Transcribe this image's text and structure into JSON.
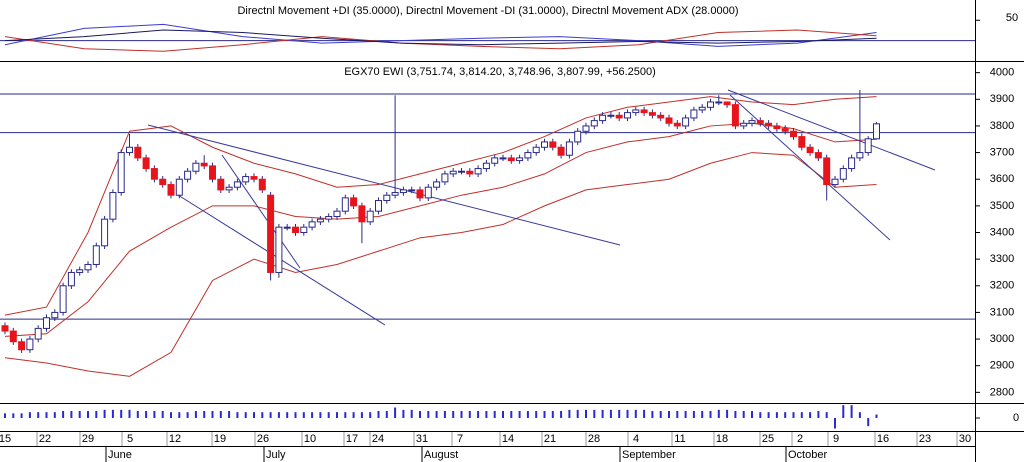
{
  "chart_data": {
    "type": "candlestick",
    "title": "EGX70 EWI (3,751.74, 3,814.20, 3,748.96, 3,807.99, +56.2500)",
    "up_color": "#ffffff",
    "down_color": "#e8141b",
    "edge_color": "#2a2a8a",
    "open": [
      3050,
      3030,
      2990,
      2960,
      3000,
      3040,
      3080,
      3100,
      3200,
      3250,
      3260,
      3280,
      3350,
      3450,
      3550,
      3700,
      3720,
      3680,
      3640,
      3600,
      3580,
      3540,
      3600,
      3630,
      3660,
      3650,
      3600,
      3560,
      3570,
      3590,
      3610,
      3600,
      3540,
      3250,
      3420,
      3420,
      3400,
      3420,
      3440,
      3450,
      3460,
      3480,
      3530,
      3500,
      3440,
      3480,
      3520,
      3540,
      3550,
      3560,
      3560,
      3530,
      3570,
      3590,
      3620,
      3630,
      3630,
      3620,
      3640,
      3660,
      3680,
      3680,
      3670,
      3680,
      3700,
      3720,
      3740,
      3720,
      3690,
      3740,
      3780,
      3800,
      3820,
      3840,
      3840,
      3830,
      3850,
      3860,
      3850,
      3840,
      3830,
      3810,
      3800,
      3830,
      3860,
      3870,
      3890,
      3890,
      3880,
      3800,
      3810,
      3820,
      3810,
      3800,
      3790,
      3780,
      3760,
      3720,
      3700,
      3680,
      3580,
      3600,
      3640,
      3680,
      3700,
      3751.74
    ],
    "high": [
      3062,
      3042,
      3002,
      3012,
      3052,
      3092,
      3112,
      3212,
      3262,
      3272,
      3292,
      3362,
      3462,
      3562,
      3712,
      3770,
      3732,
      3692,
      3652,
      3612,
      3592,
      3612,
      3642,
      3672,
      3690,
      3662,
      3612,
      3582,
      3602,
      3622,
      3622,
      3612,
      3552,
      3432,
      3432,
      3432,
      3432,
      3452,
      3462,
      3472,
      3492,
      3542,
      3542,
      3512,
      3492,
      3532,
      3552,
      3915,
      3572,
      3572,
      3572,
      3582,
      3602,
      3632,
      3642,
      3642,
      3642,
      3652,
      3672,
      3692,
      3692,
      3692,
      3692,
      3712,
      3732,
      3752,
      3752,
      3732,
      3752,
      3792,
      3812,
      3832,
      3852,
      3852,
      3852,
      3862,
      3872,
      3872,
      3862,
      3852,
      3842,
      3822,
      3842,
      3872,
      3882,
      3902,
      3915,
      3892,
      3892,
      3822,
      3832,
      3832,
      3822,
      3812,
      3802,
      3792,
      3772,
      3732,
      3712,
      3692,
      3612,
      3652,
      3692,
      3935,
      3762,
      3814.2
    ],
    "low": [
      3018,
      2978,
      2948,
      2948,
      2988,
      3028,
      3068,
      3088,
      3188,
      3238,
      3248,
      3268,
      3338,
      3438,
      3538,
      3688,
      3668,
      3628,
      3588,
      3568,
      3528,
      3528,
      3588,
      3618,
      3638,
      3588,
      3548,
      3548,
      3558,
      3578,
      3588,
      3548,
      3220,
      3230,
      3408,
      3388,
      3388,
      3408,
      3428,
      3438,
      3448,
      3468,
      3488,
      3360,
      3428,
      3468,
      3508,
      3528,
      3538,
      3548,
      3518,
      3518,
      3558,
      3578,
      3608,
      3618,
      3608,
      3608,
      3628,
      3648,
      3668,
      3658,
      3658,
      3668,
      3688,
      3708,
      3708,
      3678,
      3678,
      3728,
      3768,
      3788,
      3808,
      3828,
      3818,
      3818,
      3838,
      3838,
      3828,
      3818,
      3798,
      3788,
      3788,
      3818,
      3848,
      3858,
      3878,
      3868,
      3788,
      3788,
      3798,
      3798,
      3788,
      3778,
      3768,
      3748,
      3708,
      3688,
      3668,
      3520,
      3568,
      3588,
      3628,
      3668,
      3688,
      3748.96
    ],
    "close": [
      3030,
      2990,
      2960,
      3000,
      3040,
      3080,
      3100,
      3200,
      3250,
      3260,
      3280,
      3350,
      3450,
      3550,
      3700,
      3720,
      3680,
      3640,
      3600,
      3580,
      3540,
      3600,
      3630,
      3660,
      3650,
      3600,
      3560,
      3570,
      3590,
      3610,
      3600,
      3560,
      3250,
      3420,
      3420,
      3400,
      3420,
      3440,
      3450,
      3460,
      3480,
      3530,
      3500,
      3440,
      3480,
      3520,
      3540,
      3550,
      3560,
      3560,
      3530,
      3570,
      3590,
      3620,
      3630,
      3630,
      3620,
      3640,
      3660,
      3680,
      3680,
      3670,
      3680,
      3700,
      3720,
      3740,
      3720,
      3690,
      3740,
      3780,
      3800,
      3820,
      3840,
      3840,
      3830,
      3850,
      3860,
      3850,
      3840,
      3830,
      3810,
      3800,
      3830,
      3860,
      3870,
      3890,
      3890,
      3880,
      3800,
      3810,
      3820,
      3810,
      3800,
      3790,
      3780,
      3760,
      3720,
      3700,
      3680,
      3580,
      3600,
      3640,
      3680,
      3700,
      3751.74,
      3807.99
    ],
    "ylim": [
      2760,
      4040
    ],
    "yticks": [
      2800,
      2900,
      3000,
      3100,
      3200,
      3300,
      3400,
      3500,
      3600,
      3700,
      3800,
      3900,
      4000
    ],
    "levels": [
      3920,
      3775,
      3075
    ],
    "level_color": "#2a2a8a",
    "bands": {
      "color": "#c0302a",
      "upper": [
        3090,
        3120,
        3400,
        3780,
        3800,
        3720,
        3660,
        3620,
        3570,
        3580,
        3620,
        3660,
        3700,
        3760,
        3830,
        3870,
        3890,
        3910,
        3890,
        3880,
        3900,
        3910
      ],
      "middle": [
        3010,
        3020,
        3140,
        3330,
        3420,
        3500,
        3500,
        3460,
        3450,
        3460,
        3500,
        3540,
        3570,
        3620,
        3700,
        3740,
        3760,
        3800,
        3810,
        3790,
        3740,
        3750
      ],
      "lower": [
        2930,
        2910,
        2880,
        2860,
        2950,
        3220,
        3300,
        3250,
        3280,
        3330,
        3380,
        3400,
        3430,
        3500,
        3560,
        3580,
        3600,
        3660,
        3700,
        3690,
        3570,
        3580
      ]
    },
    "x_labels": [
      "15",
      "22",
      "29",
      "5",
      "12",
      "19",
      "26",
      "10",
      "17",
      "24",
      "31",
      "7",
      "14",
      "21",
      "28",
      "4",
      "11",
      "18",
      "25",
      "2",
      "9",
      "16",
      "23",
      "30"
    ],
    "months": [
      "June",
      "July",
      "August",
      "September",
      "October"
    ],
    "dmi": {
      "title": "Directnl Movement +DI (35.0000), Directnl Movement -DI (31.0000), Directnl Movement ADX (28.0000)",
      "ylim": [
        0,
        70
      ],
      "yticks": [
        50
      ],
      "level": 25,
      "series": [
        {
          "color": "#3b3bd0",
          "values": [
            20,
            40,
            45,
            30,
            22,
            25,
            28,
            30,
            25,
            18,
            22,
            35
          ]
        },
        {
          "color": "#c0302a",
          "values": [
            30,
            15,
            12,
            20,
            30,
            22,
            18,
            15,
            20,
            35,
            38,
            31
          ]
        },
        {
          "color": "#1a1a60",
          "values": [
            25,
            30,
            38,
            35,
            28,
            22,
            20,
            22,
            24,
            22,
            24,
            28
          ]
        }
      ]
    },
    "momentum": {
      "color": "#2a2ad0",
      "ylim": [
        -12,
        12
      ],
      "yticks": [
        0
      ],
      "values": [
        4,
        4,
        4,
        5,
        5,
        5,
        5,
        6,
        6,
        6,
        6,
        6,
        7,
        7,
        7,
        7,
        6,
        6,
        6,
        6,
        5,
        5,
        5,
        6,
        6,
        6,
        6,
        6,
        5,
        5,
        5,
        5,
        5,
        5,
        5,
        5,
        5,
        5,
        5,
        5,
        5,
        5,
        5,
        5,
        5,
        6,
        6,
        9,
        7,
        7,
        6,
        6,
        6,
        6,
        6,
        6,
        6,
        6,
        6,
        6,
        6,
        6,
        6,
        6,
        6,
        6,
        6,
        6,
        7,
        7,
        7,
        7,
        7,
        7,
        7,
        7,
        7,
        7,
        6,
        6,
        6,
        6,
        6,
        6,
        6,
        6,
        7,
        7,
        6,
        6,
        6,
        5,
        5,
        5,
        5,
        5,
        5,
        5,
        6,
        5,
        -9,
        11,
        11,
        5,
        -7,
        3
      ]
    }
  }
}
